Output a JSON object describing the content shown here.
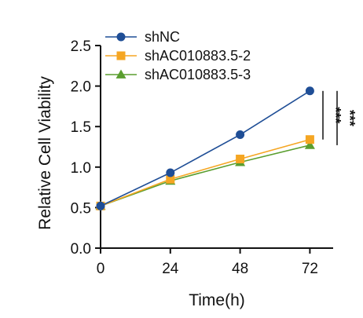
{
  "chart_data": {
    "type": "line",
    "title": "",
    "xlabel": "Time(h)",
    "ylabel": "Relative Cell Viability",
    "x": [
      0,
      24,
      48,
      72
    ],
    "xlim": [
      0,
      80
    ],
    "ylim": [
      0,
      2.5
    ],
    "x_ticks": [
      "0",
      "24",
      "48",
      "72"
    ],
    "y_ticks": [
      "0.0",
      "0.5",
      "1.0",
      "1.5",
      "2.0",
      "2.5"
    ],
    "grid": false,
    "legend_position": "top-left",
    "series": [
      {
        "name": "shNC",
        "values": [
          0.52,
          0.93,
          1.4,
          1.94
        ],
        "color": "#1f4e96",
        "marker": "circle"
      },
      {
        "name": "shAC010883.5-2",
        "values": [
          0.52,
          0.85,
          1.1,
          1.34
        ],
        "color": "#f5a623",
        "marker": "square"
      },
      {
        "name": "shAC010883.5-3",
        "values": [
          0.52,
          0.83,
          1.06,
          1.27
        ],
        "color": "#5a9e2f",
        "marker": "triangle"
      }
    ],
    "annotations": [
      {
        "text": "***",
        "between": [
          "shNC",
          "shAC010883.5-2"
        ]
      },
      {
        "text": "***",
        "between": [
          "shNC",
          "shAC010883.5-3"
        ]
      }
    ]
  }
}
